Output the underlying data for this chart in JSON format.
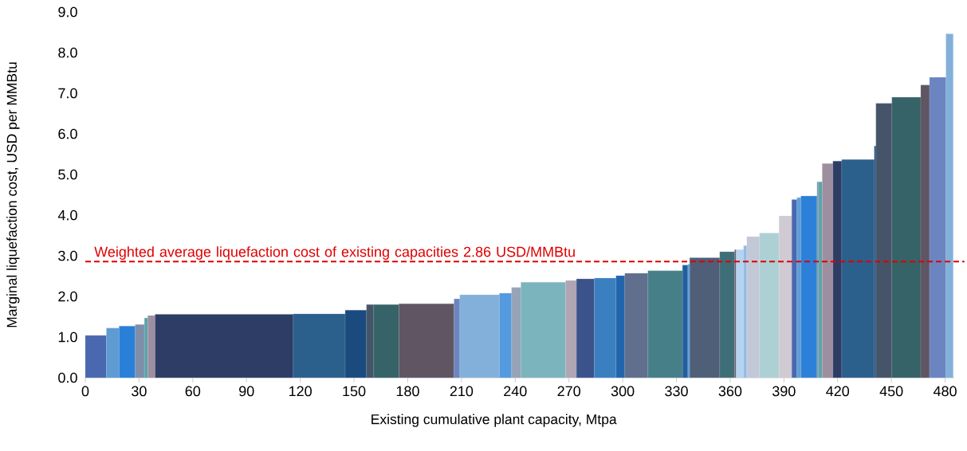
{
  "chart_data": {
    "type": "histogram",
    "xlabel": "Existing cumulative plant capacity, Mtpa",
    "ylabel": "Marginal liquefaction cost, USD per MMBtu",
    "bins": [
      0,
      11.8,
      18.9,
      27.9,
      33.0,
      34.9,
      39.0,
      116.1,
      145.1,
      157.0,
      161.0,
      175.1,
      205.9,
      209.1,
      231.2,
      238.0,
      243.2,
      268.2,
      274.2,
      284.2,
      296.3,
      301.2,
      314.1,
      333.4,
      336.4,
      337.4,
      354.2,
      362.5,
      363.4,
      367.5,
      369.3,
      376.4,
      387.3,
      394.4,
      397.3,
      399.5,
      408.5,
      409.4,
      411.4,
      417.4,
      422.3,
      440.5,
      441.4,
      450.3,
      466.4,
      471.3,
      480.5,
      484.5
    ],
    "values": [
      1.04,
      1.22,
      1.27,
      1.31,
      1.47,
      1.53,
      1.56,
      1.57,
      1.66,
      1.8,
      1.8,
      1.82,
      1.94,
      2.04,
      2.08,
      2.22,
      2.35,
      2.39,
      2.43,
      2.45,
      2.51,
      2.57,
      2.63,
      2.77,
      2.79,
      2.95,
      3.1,
      3.15,
      3.15,
      3.25,
      3.47,
      3.56,
      3.98,
      4.38,
      4.43,
      4.47,
      4.82,
      4.82,
      5.27,
      5.33,
      5.37,
      5.7,
      6.75,
      6.9,
      7.2,
      7.39,
      8.46
    ],
    "colors": [
      "#4a68b0",
      "#5f9bd3",
      "#2a80d8",
      "#7f8ea8",
      "#5ba3ab",
      "#9e8fa0",
      "#2d3d66",
      "#2b5f8c",
      "#1a4a7e",
      "#455468",
      "#356367",
      "#605563",
      "#6a85c0",
      "#82b0da",
      "#549ade",
      "#97a3b8",
      "#7bb4bc",
      "#b0a5b3",
      "#3c528a",
      "#3a80c0",
      "#2265ad",
      "#5f6f8d",
      "#477f88",
      "#225f9e",
      "#5b9ee0",
      "#505f78",
      "#3e6e78",
      "#6b6070",
      "#b5d2ef",
      "#90bce8",
      "#c3c8d6",
      "#add0d5",
      "#d0cad3",
      "#4a68b0",
      "#5f9fd5",
      "#2d80d8",
      "#7d9aa8",
      "#5ba3ab",
      "#9e8fa0",
      "#2d3d66",
      "#2b5f8c",
      "#1a4a7e",
      "#455468",
      "#356367",
      "#605563",
      "#6a85c0",
      "#82b0da"
    ],
    "xlim": [
      0,
      485
    ],
    "xticks": [
      0,
      30,
      60,
      90,
      120,
      150,
      180,
      210,
      240,
      270,
      300,
      330,
      360,
      390,
      420,
      450,
      480
    ],
    "ylim": [
      0,
      9
    ],
    "yticks": [
      {
        "value": 0,
        "label": "0.0"
      },
      {
        "value": 1,
        "label": "1.0"
      },
      {
        "value": 2,
        "label": "2.0"
      },
      {
        "value": 3,
        "label": "3.0"
      },
      {
        "value": 4,
        "label": "4.0"
      },
      {
        "value": 5,
        "label": "5.0"
      },
      {
        "value": 6,
        "label": "6.0"
      },
      {
        "value": 7,
        "label": "7.0"
      },
      {
        "value": 8,
        "label": "8.0"
      },
      {
        "value": 9,
        "label": "9.0"
      }
    ],
    "ref_lines": [
      {
        "axis": "y",
        "value": 2.86,
        "label": "Weighted average liquefaction cost of existing capacities 2.86 USD/MMBtu",
        "color": "#e00000",
        "line_style": "dashed"
      }
    ]
  }
}
